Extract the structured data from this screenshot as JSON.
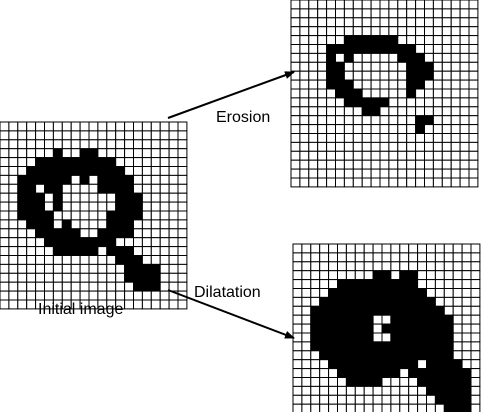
{
  "labels": {
    "initial": "Initial image",
    "erosion": "Erosion",
    "dilatation": "Dilatation"
  },
  "colors": {
    "pixel_on": "#000000",
    "pixel_off": "#ffffff",
    "grid_line": "#000000"
  },
  "grid_size": 21,
  "images": {
    "initial": [
      ".....................",
      ".....................",
      ".....................",
      "......#..##..........",
      "....#########........",
      "...###########.......",
      "..######.#.####......",
      "..##.##....####......",
      "..###.#......###.....",
      "..###.#......###.....",
      "..####......####.....",
      "...###.#....###......",
      "....#####..####......",
      ".....########........",
      "......#####.###......",
      ".............###.....",
      "..............####...",
      "..............####...",
      "...............###...",
      ".....................",
      "....................."
    ],
    "erosion": [
      ".....................",
      ".....................",
      ".....................",
      ".....................",
      "......######.........",
      "....##########.......",
      "....#.#.....###......",
      "....##.......###.....",
      "....##.......###.....",
      "....###......##......",
      ".....###.....#.......",
      "......#####..........",
      "........##...........",
      "..............##.....",
      "..............#......",
      ".....................",
      ".....................",
      ".....................",
      ".....................",
      ".....................",
      "....................."
    ],
    "dilatation": [
      ".....................",
      ".....................",
      ".....................",
      ".........##.##.......",
      ".....#########.......",
      "....###########......",
      "...#############.....",
      "..###############....",
      "..#######..#######...",
      "..#######.########...",
      "..#######..#######...",
      "..################...",
      "...###############...",
      "....##########.####..",
      ".....#######.#######.",
      "......####....######.",
      "...............#####.",
      "................####.",
      ".................###.",
      ".....................",
      "....................."
    ]
  }
}
